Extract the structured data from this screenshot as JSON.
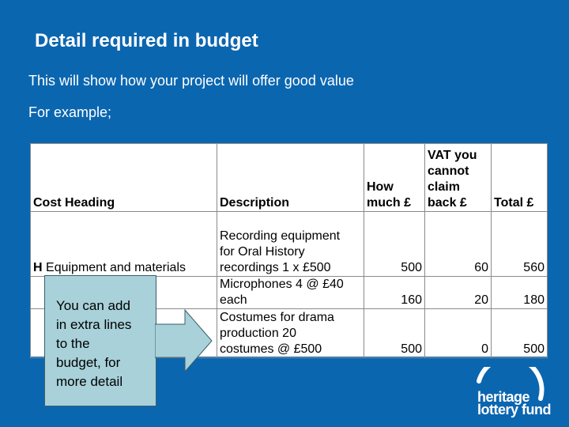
{
  "slide": {
    "title": "Detail required in budget",
    "intro": "This will show how your project will offer good value",
    "example_label": "For example;"
  },
  "table": {
    "headers": {
      "cost_heading": "Cost Heading",
      "description": "Description",
      "how_much_line1": "How",
      "how_much_line2": "much £",
      "vat_line1": "VAT you",
      "vat_line2": "cannot",
      "vat_line3": "claim",
      "vat_line4": "back £",
      "total": "Total £"
    },
    "rows": [
      {
        "cost_heading": "Equipment and materials",
        "row_marker": "H",
        "description_lines": [
          "Recording equipment",
          "for Oral History",
          "recordings 1 x £500"
        ],
        "how_much": "500",
        "vat": "60",
        "total": "560"
      },
      {
        "description_lines": [
          "Microphones 4 @ £40",
          "each"
        ],
        "how_much": "160",
        "vat": "20",
        "total": "180"
      },
      {
        "description_lines": [
          "Costumes for drama",
          "production 20",
          "costumes @ £500"
        ],
        "how_much": "500",
        "vat": "0",
        "total": "500"
      }
    ]
  },
  "callout": {
    "lines": [
      "You can add",
      "in extra lines",
      "to the",
      "budget, for",
      "more detail"
    ],
    "fill": "#a8d1d9"
  },
  "logo": {
    "line1": "heritage",
    "line2": "lottery fund",
    "icon": "heritage-lottery-fund-logo"
  },
  "colors": {
    "background": "#0b66b0",
    "text": "#ffffff"
  }
}
